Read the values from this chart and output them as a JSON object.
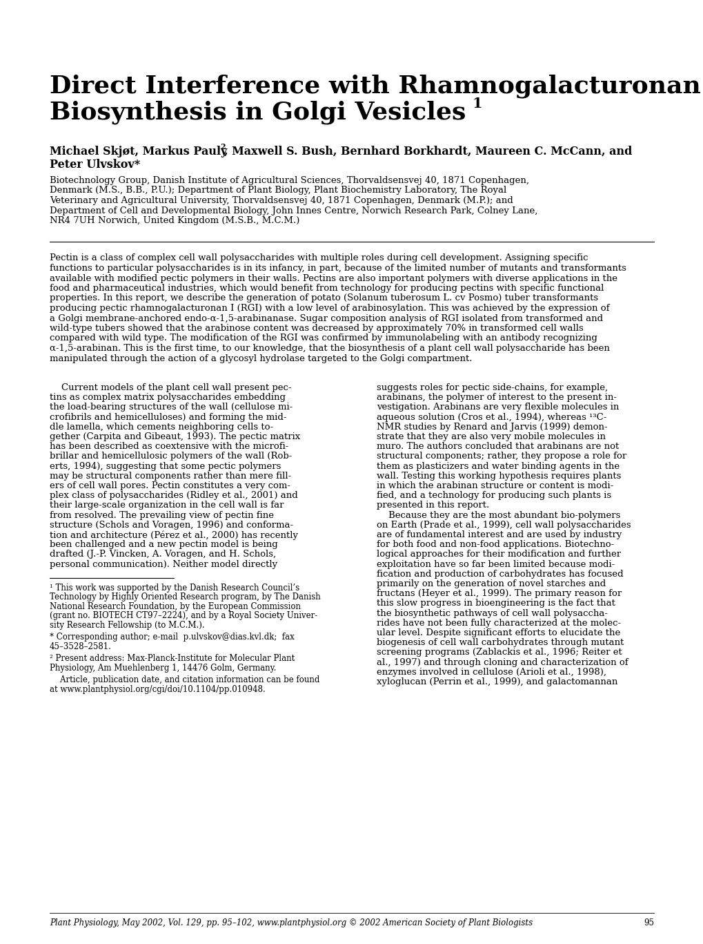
{
  "bg_color": "#ffffff",
  "title_line1": "Direct Interference with Rhamnogalacturonan I",
  "title_line2": "Biosynthesis in Golgi Vesicles",
  "title_superscript": "1",
  "authors_line1": "Michael Skjøt, Markus Pauly",
  "authors_sup": "2",
  "authors_line2": ", Maxwell S. Bush, Bernhard Borkhardt, Maureen C. McCann, and",
  "authors_line3": "Peter Ulvskov*",
  "affil_lines": [
    "Biotechnology Group, Danish Institute of Agricultural Sciences, Thorvaldsensvej 40, 1871 Copenhagen,",
    "Denmark (M.S., B.B., P.U.); Department of Plant Biology, Plant Biochemistry Laboratory, The Royal",
    "Veterinary and Agricultural University, Thorvaldsensvej 40, 1871 Copenhagen, Denmark (M.P.); and",
    "Department of Cell and Developmental Biology, John Innes Centre, Norwich Research Park, Colney Lane,",
    "NR4 7UH Norwich, United Kingdom (M.S.B., M.C.M.)"
  ],
  "abstract_lines": [
    "Pectin is a class of complex cell wall polysaccharides with multiple roles during cell development. Assigning specific",
    "functions to particular polysaccharides is in its infancy, in part, because of the limited number of mutants and transformants",
    "available with modified pectic polymers in their walls. Pectins are also important polymers with diverse applications in the",
    "food and pharmaceutical industries, which would benefit from technology for producing pectins with specific functional",
    "properties. In this report, we describe the generation of potato (Solanum tuberosum L. cv Posmo) tuber transformants",
    "producing pectic rhamnogalacturonan I (RGI) with a low level of arabinosylation. This was achieved by the expression of",
    "a Golgi membrane-anchored endo-α-1,5-arabinanase. Sugar composition analysis of RGI isolated from transformed and",
    "wild-type tubers showed that the arabinose content was decreased by approximately 70% in transformed cell walls",
    "compared with wild type. The modification of the RGI was confirmed by immunolabeling with an antibody recognizing",
    "α-1,5-arabinan. This is the first time, to our knowledge, that the biosynthesis of a plant cell wall polysaccharide has been",
    "manipulated through the action of a glycosyl hydrolase targeted to the Golgi compartment."
  ],
  "col1_lines": [
    "    Current models of the plant cell wall present pec-",
    "tins as complex matrix polysaccharides embedding",
    "the load-bearing structures of the wall (cellulose mi-",
    "crofibrils and hemicelluloses) and forming the mid-",
    "dle lamella, which cements neighboring cells to-",
    "gether (Carpita and Gibeaut, 1993). The pectic matrix",
    "has been described as coextensive with the microfi-",
    "brillar and hemicellulosic polymers of the wall (Rob-",
    "erts, 1994), suggesting that some pectic polymers",
    "may be structural components rather than mere fill-",
    "ers of cell wall pores. Pectin constitutes a very com-",
    "plex class of polysaccharides (Ridley et al., 2001) and",
    "their large-scale organization in the cell wall is far",
    "from resolved. The prevailing view of pectin fine",
    "structure (Schols and Voragen, 1996) and conforma-",
    "tion and architecture (Pérez et al., 2000) has recently",
    "been challenged and a new pectin model is being",
    "drafted (J.-P. Vincken, A. Voragen, and H. Schols,",
    "personal communication). Neither model directly"
  ],
  "col2_lines": [
    "suggests roles for pectic side-chains, for example,",
    "arabinans, the polymer of interest to the present in-",
    "vestigation. Arabinans are very flexible molecules in",
    "aqueous solution (Cros et al., 1994), whereas ¹³C-",
    "NMR studies by Renard and Jarvis (1999) demon-",
    "strate that they are also very mobile molecules in",
    "muro. The authors concluded that arabinans are not",
    "structural components; rather, they propose a role for",
    "them as plasticizers and water binding agents in the",
    "wall. Testing this working hypothesis requires plants",
    "in which the arabinan structure or content is modi-",
    "fied, and a technology for producing such plants is",
    "presented in this report.",
    "    Because they are the most abundant bio-polymers",
    "on Earth (Prade et al., 1999), cell wall polysaccharides",
    "are of fundamental interest and are used by industry",
    "for both food and non-food applications. Biotechno-",
    "logical approaches for their modification and further",
    "exploitation have so far been limited because modi-",
    "fication and production of carbohydrates has focused",
    "primarily on the generation of novel starches and",
    "fructans (Heyer et al., 1999). The primary reason for",
    "this slow progress in bioengineering is the fact that",
    "the biosynthetic pathways of cell wall polysaccha-",
    "rides have not been fully characterized at the molec-",
    "ular level. Despite significant efforts to elucidate the",
    "biogenesis of cell wall carbohydrates through mutant",
    "screening programs (Zablackis et al., 1996; Reiter et",
    "al., 1997) and through cloning and characterization of",
    "enzymes involved in cellulose (Arioli et al., 1998),",
    "xyloglucan (Perrin et al., 1999), and galactomannan"
  ],
  "fn1_lines": [
    "¹ This work was supported by the Danish Research Council’s",
    "Technology by Highly Oriented Research program, by The Danish",
    "National Research Foundation, by the European Commission",
    "(grant no. BIOTECH CT97–2224), and by a Royal Society Univer-",
    "sity Research Fellowship (to M.C.M.)."
  ],
  "fn_star_lines": [
    "* Corresponding author; e-mail  p.ulvskov@dias.kvl.dk;  fax",
    "45–3528–2581."
  ],
  "fn2_lines": [
    "² Present address: Max-Planck-Institute for Molecular Plant",
    "Physiology, Am Muehlenberg 1, 14476 Golm, Germany."
  ],
  "fn3_lines": [
    "    Article, publication date, and citation information can be found",
    "at www.plantphysiol.org/cgi/doi/10.1104/pp.010948."
  ],
  "footer_text": "Plant Physiology, May 2002, Vol. 129, pp. 95–102, www.plantphysiol.org © 2002 American Society of Plant Biologists",
  "footer_page": "95"
}
